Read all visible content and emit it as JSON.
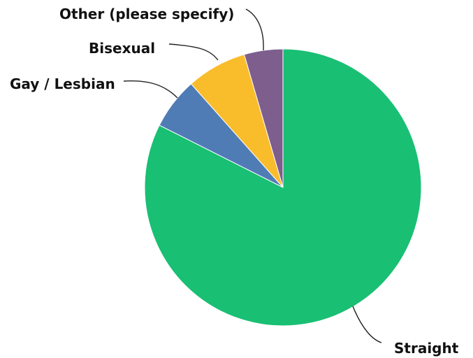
{
  "chart_data": {
    "type": "pie",
    "title": "",
    "slices": [
      {
        "label": "Straight",
        "value": 82.0,
        "color": "#19BF73"
      },
      {
        "label": "Gay / Lesbian",
        "value": 6.0,
        "color": "#507CB6"
      },
      {
        "label": "Bisexual",
        "value": 7.0,
        "color": "#F9BC2B"
      },
      {
        "label": "Other (please specify)",
        "value": 4.5,
        "color": "#7D5E8D"
      }
    ],
    "start_angle_deg": 0,
    "direction": "clockwise",
    "labels_outside": true
  }
}
